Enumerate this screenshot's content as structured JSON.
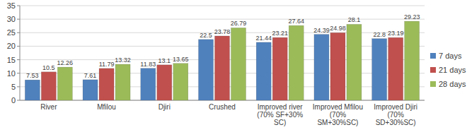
{
  "chart_data": {
    "type": "bar",
    "categories": [
      "River",
      "Mfilou",
      "Djiri",
      "Crushed",
      "Improved river (70% SF+30% SC)",
      "Improved Mfilou (70% SM+30%SC)",
      "Improved Djiri (70% SD+30%SC)"
    ],
    "series": [
      {
        "name": "7 days",
        "color": "#4f81bd",
        "values": [
          7.53,
          7.61,
          11.83,
          22.5,
          21.44,
          24.39,
          22.8
        ]
      },
      {
        "name": "21 days",
        "color": "#c0504d",
        "values": [
          10.5,
          11.79,
          13.1,
          23.78,
          23.21,
          24.98,
          23.19
        ]
      },
      {
        "name": "28 days",
        "color": "#9bbb59",
        "values": [
          12.26,
          13.32,
          13.65,
          26.79,
          27.64,
          28.1,
          29.23
        ]
      }
    ],
    "ylim": [
      0,
      35
    ],
    "yticks": [
      0,
      5,
      10,
      15,
      20,
      25,
      30,
      35
    ],
    "grid": true,
    "legend": "right",
    "data_labels": true
  }
}
